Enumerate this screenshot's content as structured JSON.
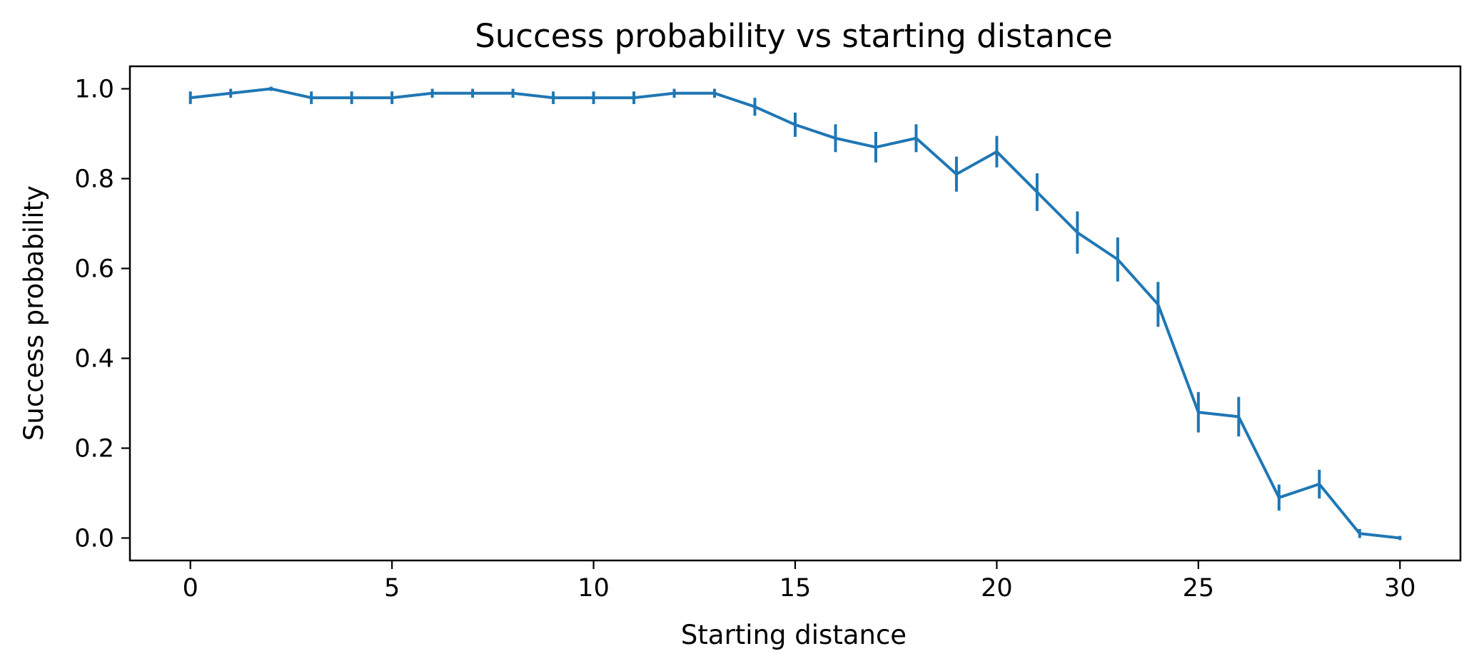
{
  "chart_data": {
    "type": "line",
    "title": "Success probability vs starting distance",
    "xlabel": "Starting distance",
    "ylabel": "Success probability",
    "xlim": [
      -1.5,
      31.5
    ],
    "ylim": [
      -0.05,
      1.05
    ],
    "x_ticks": [
      0,
      5,
      10,
      15,
      20,
      25,
      30
    ],
    "x_tick_labels": [
      "0",
      "5",
      "10",
      "15",
      "20",
      "25",
      "30"
    ],
    "y_ticks": [
      0.0,
      0.2,
      0.4,
      0.6,
      0.8,
      1.0
    ],
    "y_tick_labels": [
      "0.0",
      "0.2",
      "0.4",
      "0.6",
      "0.8",
      "1.0"
    ],
    "grid": false,
    "error_bars": true,
    "series": [
      {
        "color": "#1f77b4",
        "x": [
          0,
          1,
          2,
          3,
          4,
          5,
          6,
          7,
          8,
          9,
          10,
          11,
          12,
          13,
          14,
          15,
          16,
          17,
          18,
          19,
          20,
          21,
          22,
          23,
          24,
          25,
          26,
          27,
          28,
          29,
          30
        ],
        "y": [
          0.98,
          0.99,
          1.0,
          0.98,
          0.98,
          0.98,
          0.99,
          0.99,
          0.99,
          0.98,
          0.98,
          0.98,
          0.99,
          0.99,
          0.96,
          0.92,
          0.89,
          0.87,
          0.89,
          0.81,
          0.86,
          0.77,
          0.68,
          0.62,
          0.52,
          0.28,
          0.27,
          0.09,
          0.12,
          0.01,
          0.0
        ],
        "yerr": [
          0.014,
          0.01,
          0.0,
          0.014,
          0.014,
          0.014,
          0.01,
          0.01,
          0.01,
          0.014,
          0.014,
          0.014,
          0.01,
          0.01,
          0.02,
          0.027,
          0.031,
          0.034,
          0.031,
          0.039,
          0.035,
          0.042,
          0.047,
          0.049,
          0.05,
          0.045,
          0.044,
          0.029,
          0.032,
          0.01,
          0.0
        ]
      }
    ]
  }
}
